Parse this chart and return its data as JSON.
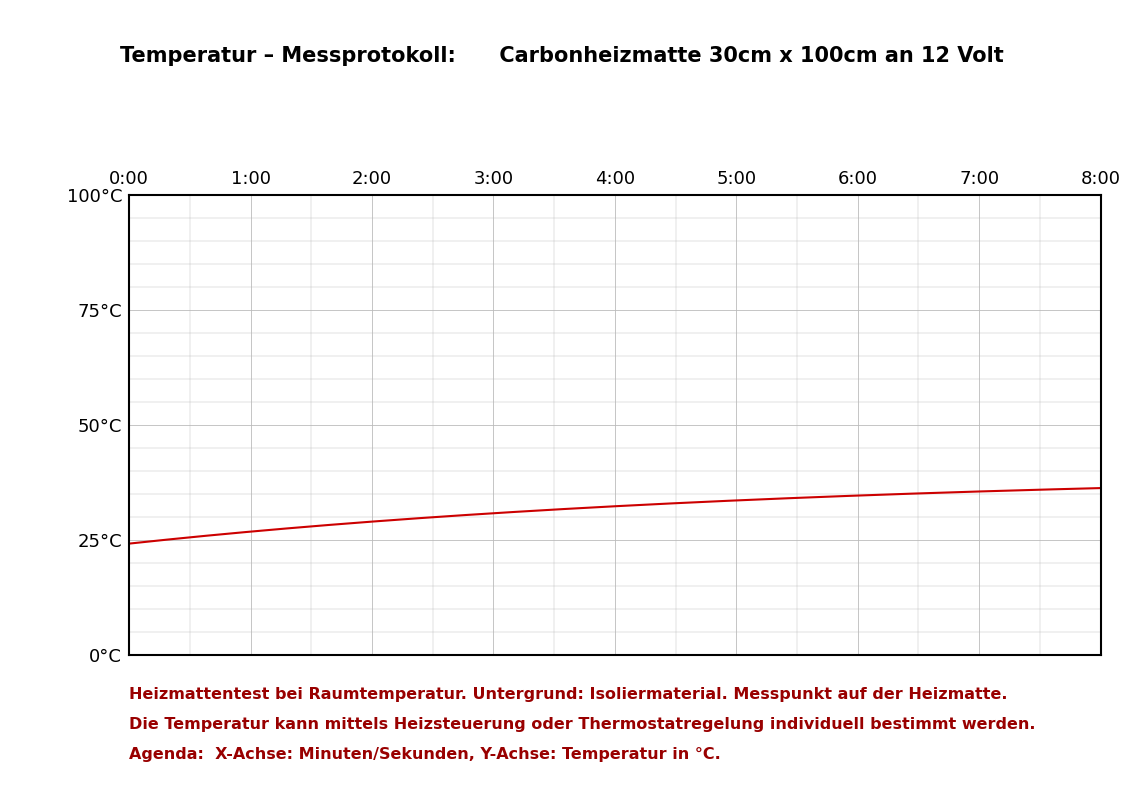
{
  "title": "Temperatur – Messprotokoll:      Carbonheizmatte 30cm x 100cm an 12 Volt",
  "x_ticks": [
    0,
    60,
    120,
    180,
    240,
    300,
    360,
    420,
    480
  ],
  "x_tick_labels": [
    "0:00",
    "1:00",
    "2:00",
    "3:00",
    "4:00",
    "5:00",
    "6:00",
    "7:00",
    "8:00"
  ],
  "y_ticks": [
    0,
    25,
    50,
    75,
    100
  ],
  "y_tick_labels": [
    "0°C",
    "25°C",
    "50°C",
    "75°C",
    "100°C"
  ],
  "xlim": [
    0,
    480
  ],
  "ylim": [
    0,
    100
  ],
  "line_color": "#cc0000",
  "line_width": 1.5,
  "grid_color": "#bbbbbb",
  "background_color": "#ffffff",
  "curve_start_temp": 24.2,
  "curve_end_temp": 40.0,
  "curve_rise_rate": 0.003,
  "footer_line1": "Heizmattentest bei Raumtemperatur. Untergrund: Isoliermaterial. Messpunkt auf der Heizmatte.",
  "footer_line2": "Die Temperatur kann mittels Heizsteuerung oder Thermostatregelung individuell bestimmt werden.",
  "footer_line3": "Agenda:  X-Achse: Minuten/Sekunden, Y-Achse: Temperatur in °C.",
  "footer_color": "#990000",
  "title_fontsize": 15,
  "tick_fontsize": 13,
  "footer_fontsize": 11.5
}
